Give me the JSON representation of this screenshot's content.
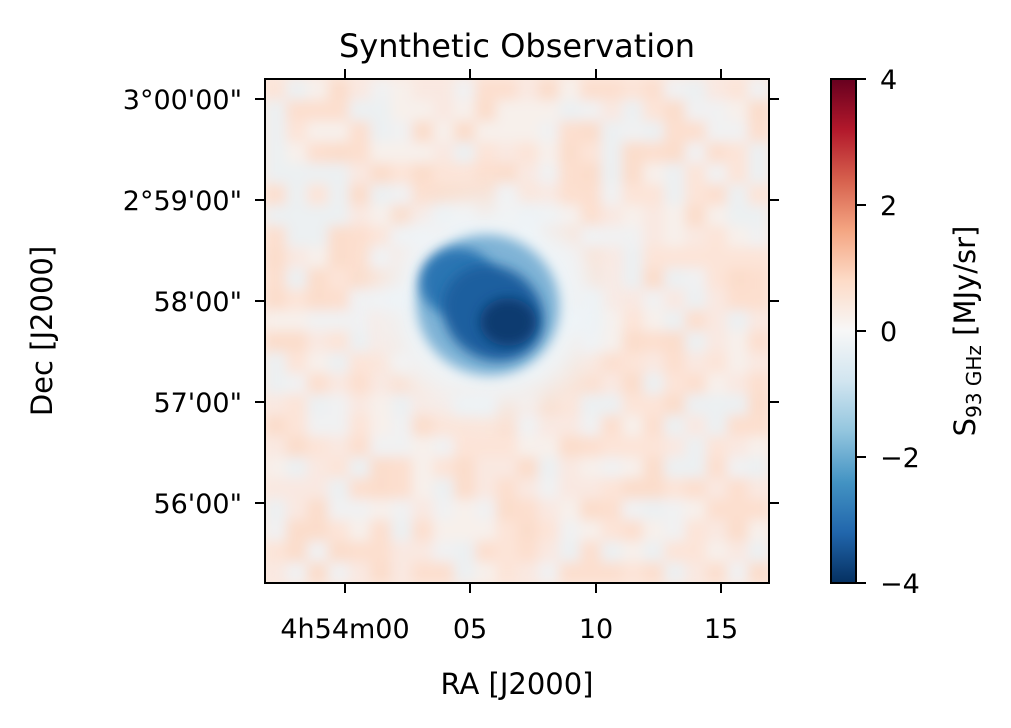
{
  "chart_data": {
    "type": "heatmap",
    "title": "Synthetic Observation",
    "xlabel": "RA [J2000]",
    "ylabel": "Dec [J2000]",
    "x_ticks": [
      "4h54m00",
      "05",
      "10",
      "15"
    ],
    "y_ticks": [
      "3°00'00\"",
      "2°59'00\"",
      "58'00\"",
      "57'00\"",
      "56'00\""
    ],
    "colorbar": {
      "label_main": "S",
      "label_sub": "93 GHz",
      "label_unit": " [MJy/sr]",
      "ticks": [
        "4",
        "2",
        "0",
        "−2",
        "−4"
      ],
      "vmin": -4,
      "vmax": 4,
      "colormap": "RdBu_r"
    },
    "image": {
      "background_level": 0.4,
      "source": {
        "description_component_1": {
          "ra_frac": 0.44,
          "dec_frac": 0.45,
          "amplitude": -2.6
        },
        "description_component_2": {
          "ra_frac": 0.48,
          "dec_frac": 0.49,
          "amplitude": -3.9
        },
        "description_component_3": {
          "ra_frac": 0.39,
          "dec_frac": 0.41,
          "amplitude": -2.2
        }
      }
    },
    "grid": false
  }
}
